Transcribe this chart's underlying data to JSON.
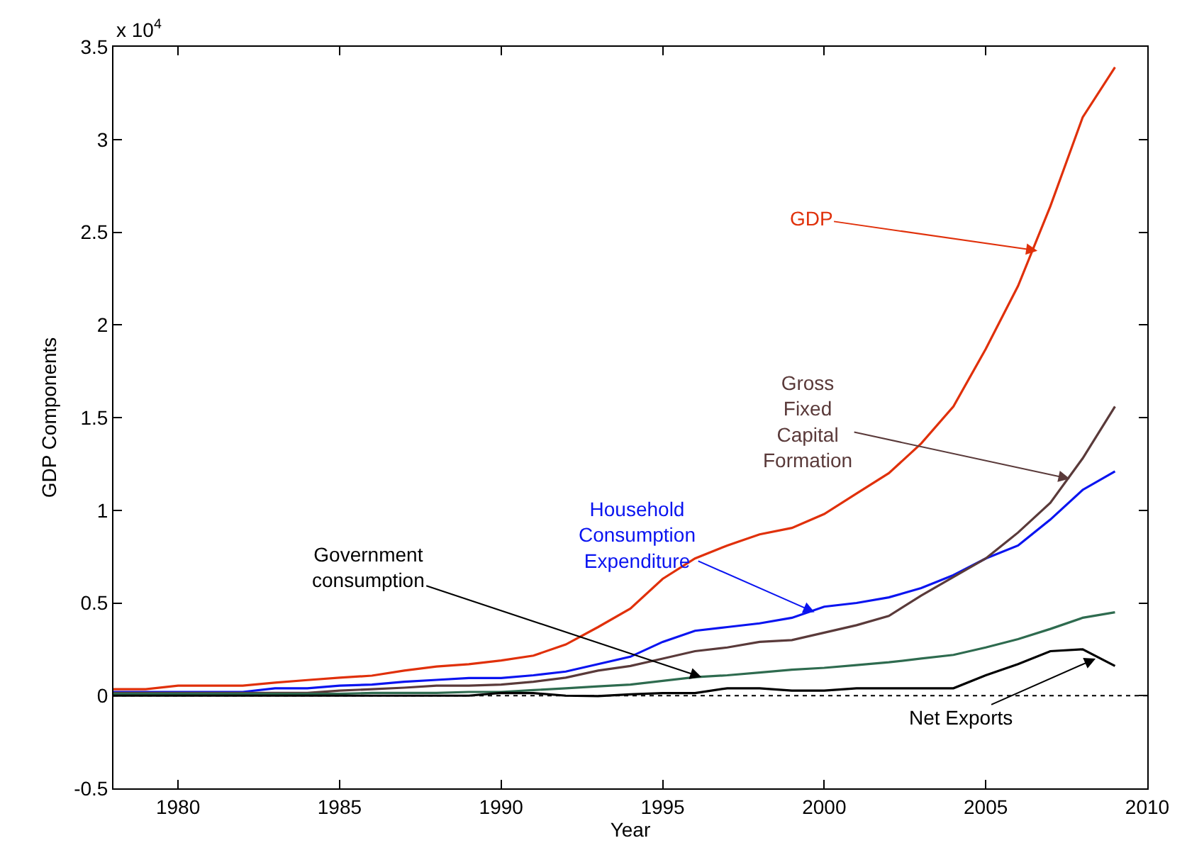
{
  "chart_data": {
    "type": "line",
    "xlabel": "Year",
    "ylabel": "GDP Components",
    "x": [
      1978,
      1979,
      1980,
      1981,
      1982,
      1983,
      1984,
      1985,
      1986,
      1987,
      1988,
      1989,
      1990,
      1991,
      1992,
      1993,
      1994,
      1995,
      1996,
      1997,
      1998,
      1999,
      2000,
      2001,
      2002,
      2003,
      2004,
      2005,
      2006,
      2007,
      2008,
      2009
    ],
    "series": [
      {
        "color": "#e0300a",
        "values": [
          0.035,
          0.035,
          0.054,
          0.054,
          0.054,
          0.07,
          0.084,
          0.097,
          0.108,
          0.135,
          0.157,
          0.17,
          0.19,
          0.216,
          0.276,
          0.37,
          0.47,
          0.63,
          0.74,
          0.81,
          0.87,
          0.905,
          0.98,
          1.09,
          1.2,
          1.36,
          1.56,
          1.87,
          2.21,
          2.64,
          3.12,
          3.39
        ]
      },
      {
        "color": "#0a14f0",
        "values": [
          0.02,
          0.02,
          0.02,
          0.02,
          0.02,
          0.04,
          0.04,
          0.054,
          0.06,
          0.075,
          0.085,
          0.095,
          0.095,
          0.11,
          0.13,
          0.17,
          0.21,
          0.29,
          0.35,
          0.37,
          0.39,
          0.42,
          0.48,
          0.5,
          0.53,
          0.58,
          0.65,
          0.74,
          0.81,
          0.95,
          1.11,
          1.21
        ]
      },
      {
        "color": "#5a3a3a",
        "values": [
          0.015,
          0.015,
          0.015,
          0.015,
          0.015,
          0.015,
          0.015,
          0.027,
          0.035,
          0.043,
          0.054,
          0.054,
          0.06,
          0.075,
          0.097,
          0.135,
          0.16,
          0.2,
          0.24,
          0.26,
          0.29,
          0.3,
          0.34,
          0.38,
          0.43,
          0.54,
          0.64,
          0.74,
          0.88,
          1.04,
          1.28,
          1.56
        ]
      },
      {
        "color": "#2e6b4f",
        "values": [
          0.01,
          0.01,
          0.01,
          0.01,
          0.01,
          0.01,
          0.01,
          0.01,
          0.015,
          0.015,
          0.015,
          0.02,
          0.02,
          0.03,
          0.04,
          0.05,
          0.06,
          0.08,
          0.1,
          0.11,
          0.125,
          0.14,
          0.15,
          0.165,
          0.18,
          0.2,
          0.22,
          0.26,
          0.305,
          0.36,
          0.42,
          0.45
        ]
      },
      {
        "color": "#000000",
        "values": [
          0,
          0,
          0,
          0,
          0,
          0,
          0,
          0,
          0,
          0,
          0,
          0,
          0.015,
          0.014,
          0,
          -0.002,
          0.007,
          0.014,
          0.014,
          0.04,
          0.04,
          0.027,
          0.027,
          0.04,
          0.04,
          0.04,
          0.04,
          0.11,
          0.17,
          0.24,
          0.25,
          0.16
        ]
      }
    ],
    "xlim": [
      1978,
      2010
    ],
    "xticks": [
      1980,
      1985,
      1990,
      1995,
      2000,
      2005,
      2010
    ],
    "ylim": [
      -0.5,
      3.5
    ],
    "yticks": [
      -0.5,
      0,
      0.5,
      1,
      1.5,
      2,
      2.5,
      3,
      3.5
    ],
    "ref_lines": [
      {
        "axis": "y",
        "value": 0,
        "color": "#000000",
        "line_style": "dotted"
      }
    ],
    "annotations": [
      {
        "text": "GDP",
        "x": 2006.6,
        "y": 2.4
      },
      {
        "text": "Household\nConsumption\nExpenditure",
        "x": 1999.7,
        "y": 0.45
      },
      {
        "text": "Gross\nFixed\nCapital\nFormation",
        "x": 2007.6,
        "y": 1.17
      },
      {
        "text": "Government\nconsumption",
        "x": 1996.2,
        "y": 0.1
      },
      {
        "text": "Net Exports",
        "x": 2008.4,
        "y": 0.2
      },
      "x 10$^{4}$"
    ]
  }
}
